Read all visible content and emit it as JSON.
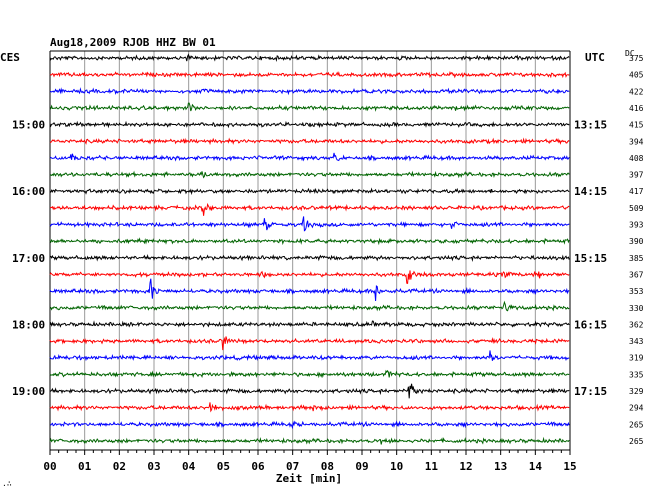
{
  "chart_data": {
    "type": "line",
    "title": "Aug18,2009  RJOB HHZ BW 01",
    "left_tz": "CES",
    "right_tz": "UTC",
    "dc_header": "DC",
    "xlabel": "Zeit [min]",
    "x_ticks": [
      "00",
      "01",
      "02",
      "03",
      "04",
      "05",
      "06",
      "07",
      "08",
      "09",
      "10",
      "11",
      "12",
      "13",
      "14",
      "15"
    ],
    "xlim": [
      0,
      15
    ],
    "trace_colors": [
      "#000000",
      "#ff0000",
      "#0000ff",
      "#006400"
    ],
    "left_hour_labels": [
      {
        "row": 4,
        "text": "15:00"
      },
      {
        "row": 8,
        "text": "16:00"
      },
      {
        "row": 12,
        "text": "17:00"
      },
      {
        "row": 16,
        "text": "18:00"
      },
      {
        "row": 20,
        "text": "19:00"
      }
    ],
    "right_hour_labels": [
      {
        "row": 4,
        "text": "13:15"
      },
      {
        "row": 8,
        "text": "14:15"
      },
      {
        "row": 12,
        "text": "15:15"
      },
      {
        "row": 16,
        "text": "16:15"
      },
      {
        "row": 20,
        "text": "17:15"
      }
    ],
    "dc_values": [
      "375",
      "405",
      "422",
      "416",
      "415",
      "394",
      "408",
      "397",
      "417",
      "509",
      "393",
      "390",
      "385",
      "367",
      "353",
      "330",
      "362",
      "343",
      "319",
      "335",
      "329",
      "294",
      "265",
      "265"
    ],
    "events": [
      {
        "row": 0,
        "t": 3.9,
        "amp": 4
      },
      {
        "row": 2,
        "t": 1.9,
        "amp": 4
      },
      {
        "row": 3,
        "t": 4.0,
        "amp": 8
      },
      {
        "row": 3,
        "t": 11.7,
        "amp": 4
      },
      {
        "row": 6,
        "t": 0.6,
        "amp": 8
      },
      {
        "row": 6,
        "t": 8.2,
        "amp": 7
      },
      {
        "row": 7,
        "t": 4.4,
        "amp": 4
      },
      {
        "row": 9,
        "t": 4.4,
        "amp": 9
      },
      {
        "row": 10,
        "t": 6.2,
        "amp": 10
      },
      {
        "row": 10,
        "t": 7.3,
        "amp": 12
      },
      {
        "row": 10,
        "t": 11.6,
        "amp": 5
      },
      {
        "row": 13,
        "t": 6.1,
        "amp": 5
      },
      {
        "row": 13,
        "t": 10.3,
        "amp": 12
      },
      {
        "row": 13,
        "t": 13.1,
        "amp": 5
      },
      {
        "row": 13,
        "t": 14.0,
        "amp": 11
      },
      {
        "row": 14,
        "t": 2.9,
        "amp": 14
      },
      {
        "row": 14,
        "t": 9.4,
        "amp": 10
      },
      {
        "row": 15,
        "t": 13.1,
        "amp": 11
      },
      {
        "row": 16,
        "t": 9.3,
        "amp": 5
      },
      {
        "row": 17,
        "t": 5.0,
        "amp": 9
      },
      {
        "row": 18,
        "t": 12.7,
        "amp": 9
      },
      {
        "row": 19,
        "t": 9.7,
        "amp": 6
      },
      {
        "row": 20,
        "t": 10.35,
        "amp": 20
      },
      {
        "row": 21,
        "t": 4.6,
        "amp": 9
      },
      {
        "row": 21,
        "t": 7.6,
        "amp": 5
      },
      {
        "row": 22,
        "t": 7.0,
        "amp": 5
      },
      {
        "row": 23,
        "t": 9.5,
        "amp": 4
      }
    ]
  }
}
